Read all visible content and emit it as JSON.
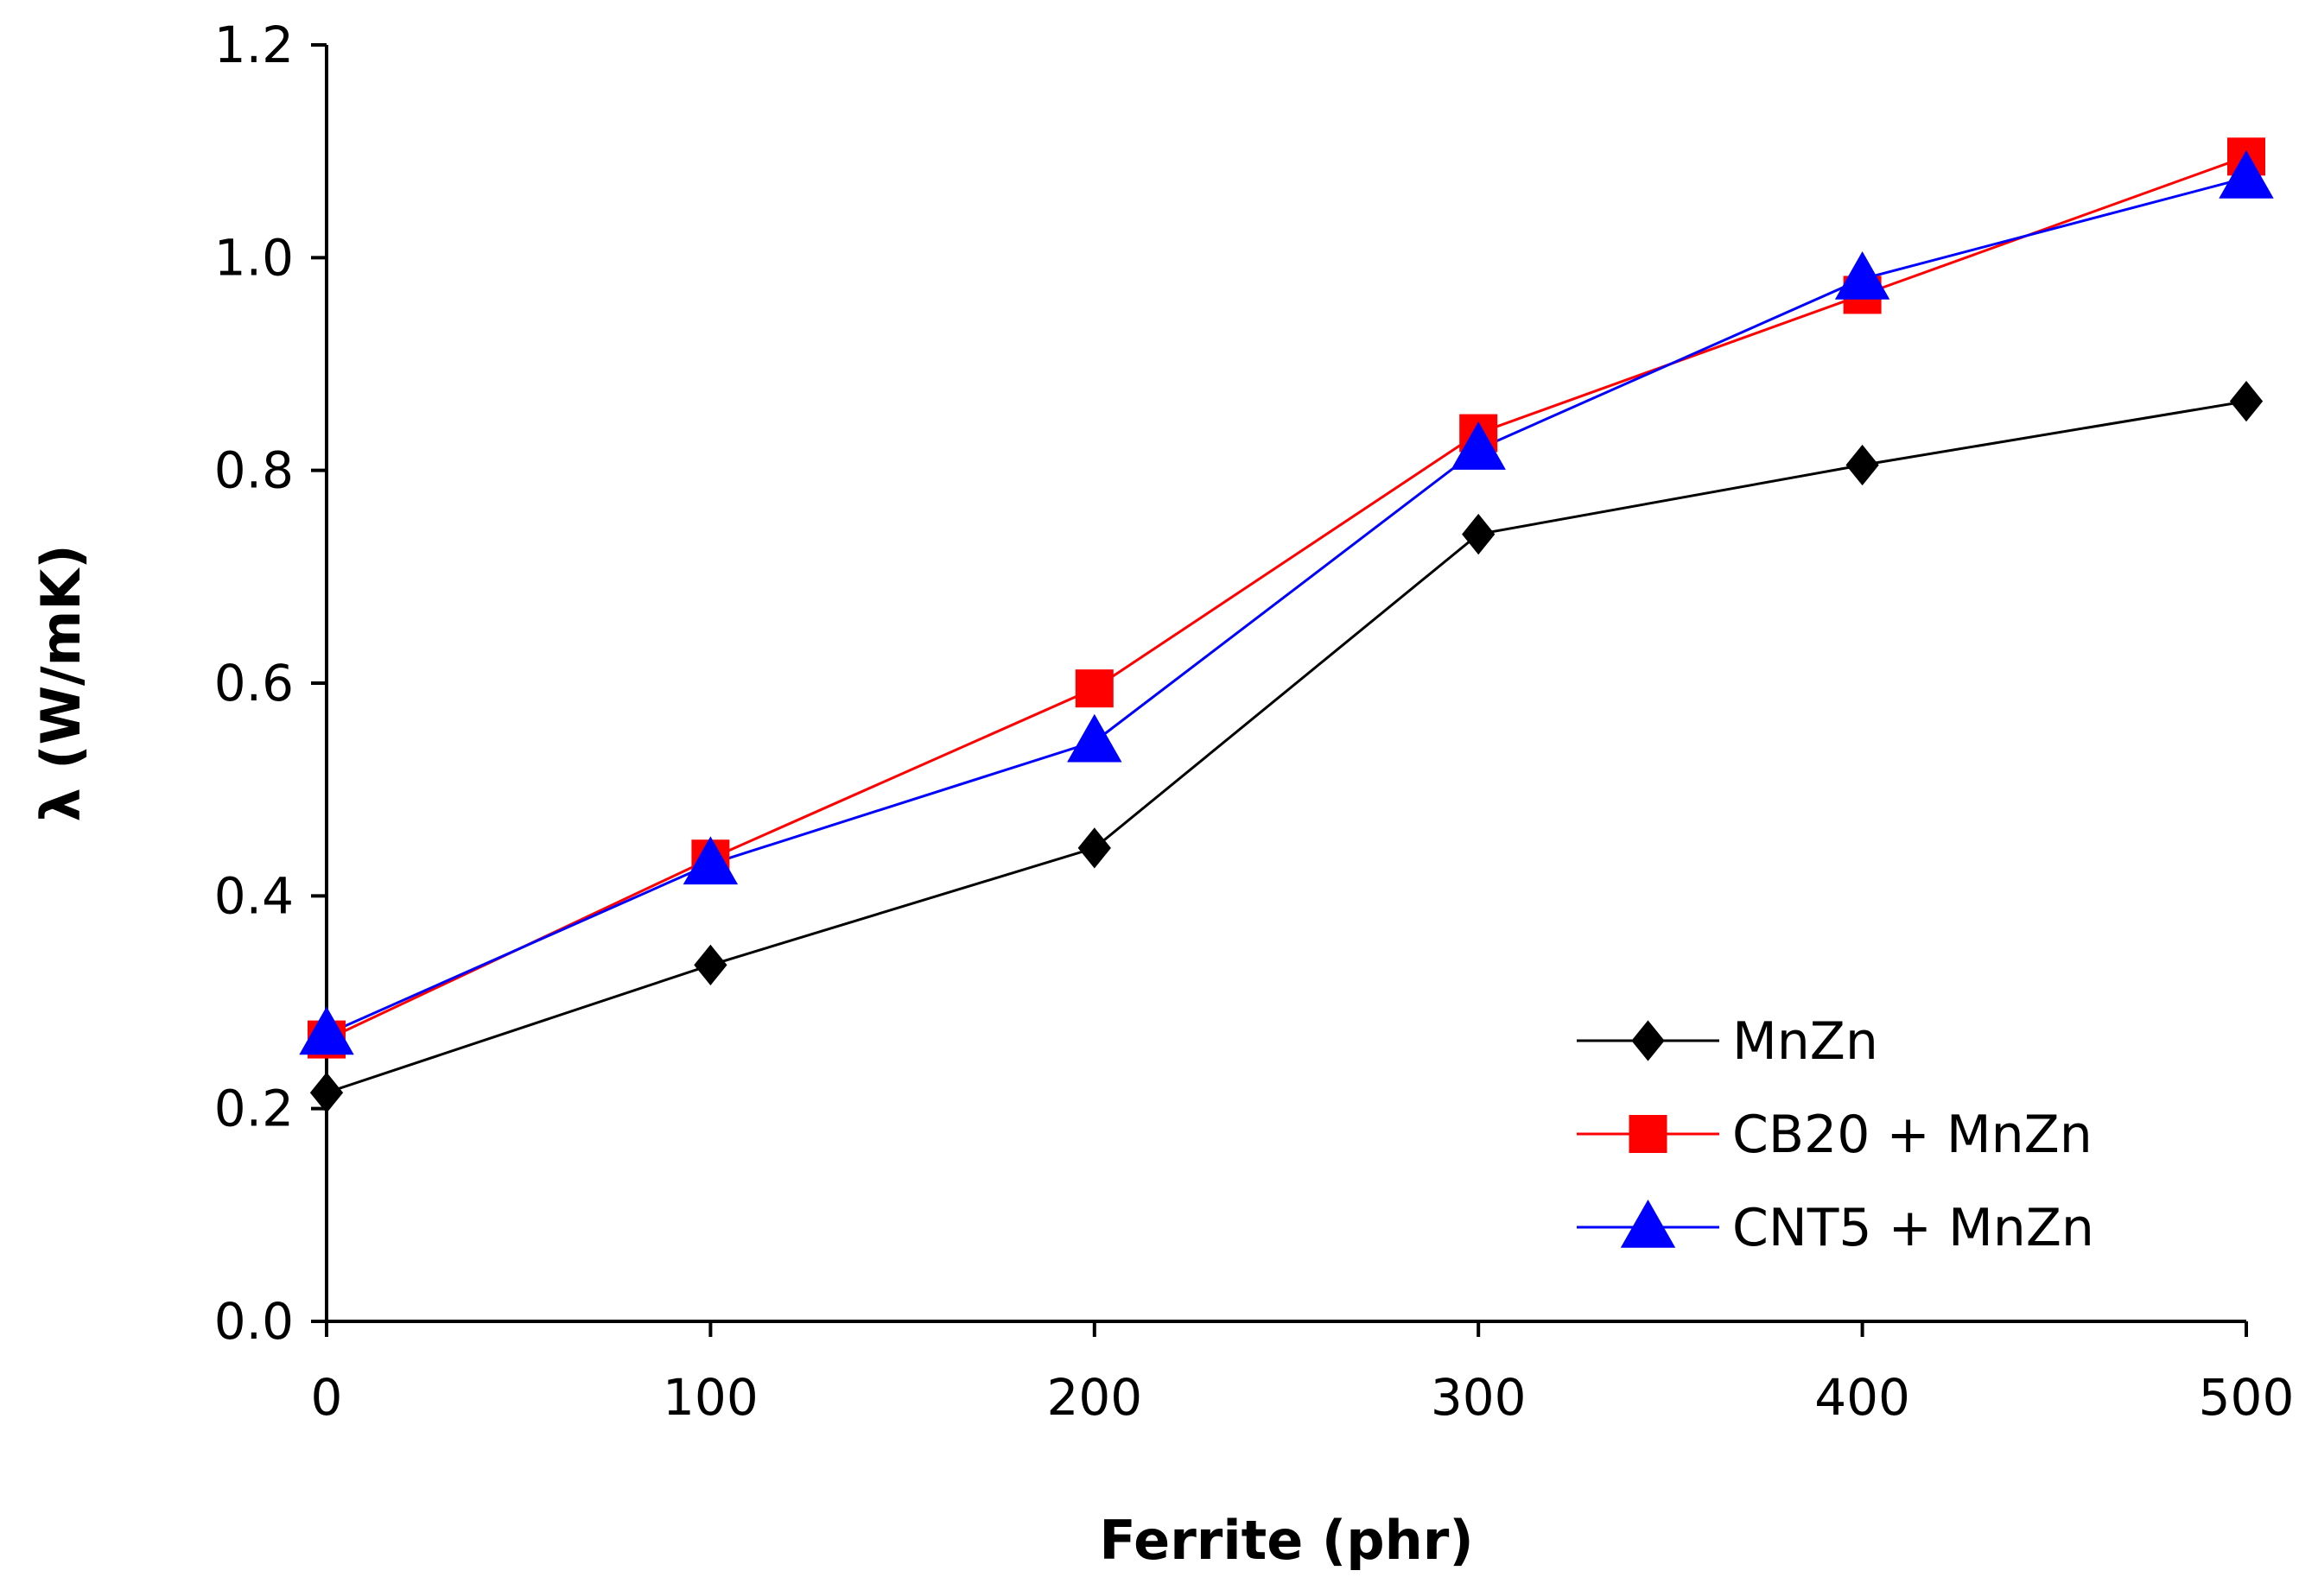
{
  "chart_data": {
    "type": "line",
    "title": "",
    "xlabel": "Ferrite (phr)",
    "ylabel": "λ (W/mK)",
    "x": [
      0,
      100,
      200,
      300,
      400,
      500
    ],
    "x_ticks": [
      "0",
      "100",
      "200",
      "300",
      "400",
      "500"
    ],
    "y_ticks": [
      "0.0",
      "0.2",
      "0.4",
      "0.6",
      "0.8",
      "1.0",
      "1.2"
    ],
    "xlim": [
      0,
      500
    ],
    "ylim": [
      0,
      1.2
    ],
    "grid": false,
    "legend_position": "bottom-right",
    "series": [
      {
        "name": "MnZn",
        "color": "#000000",
        "marker": "diamond",
        "values": [
          0.215,
          0.335,
          0.445,
          0.74,
          0.805,
          0.865
        ]
      },
      {
        "name": "CB20 + MnZn",
        "color": "#ff0000",
        "marker": "square",
        "values": [
          0.265,
          0.435,
          0.595,
          0.835,
          0.965,
          1.095
        ]
      },
      {
        "name": "CNT5 + MnZn",
        "color": "#0000ff",
        "marker": "triangle",
        "values": [
          0.27,
          0.43,
          0.545,
          0.82,
          0.98,
          1.075
        ]
      }
    ]
  }
}
